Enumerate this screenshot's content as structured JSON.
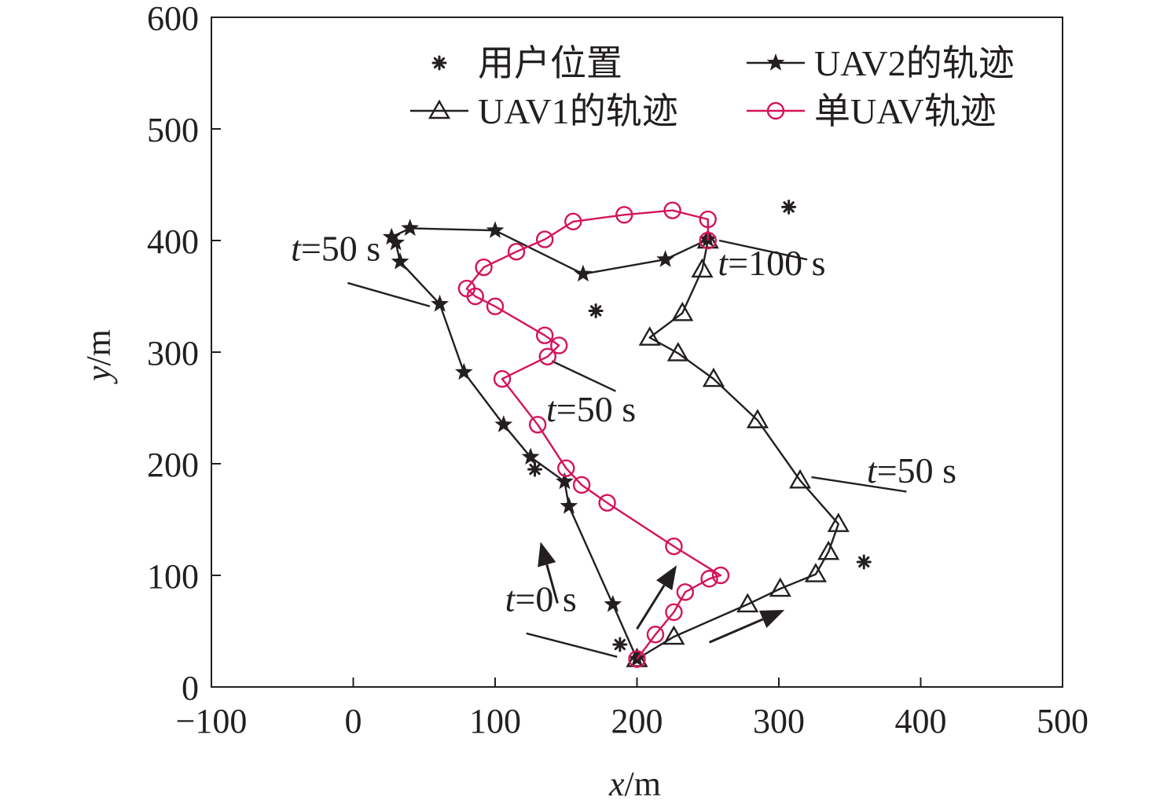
{
  "chart_data": {
    "type": "scatter",
    "xlabel": {
      "var": "x",
      "unit": "/m"
    },
    "ylabel": {
      "var": "y",
      "unit": "/m"
    },
    "xlim": [
      -100,
      500
    ],
    "ylim": [
      0,
      600
    ],
    "xticks": [
      "−100",
      "0",
      "100",
      "200",
      "300",
      "400",
      "500"
    ],
    "yticks": [
      "0",
      "100",
      "200",
      "300",
      "400",
      "500",
      "600"
    ],
    "xtick_values": [
      -100,
      0,
      100,
      200,
      300,
      400,
      500
    ],
    "ytick_values": [
      0,
      100,
      200,
      300,
      400,
      500,
      600
    ],
    "grid": false,
    "legend_position": "top",
    "colors": {
      "ink": "#231f20",
      "single": "#d4145a"
    },
    "series": [
      {
        "key": "users",
        "name": "用户位置",
        "marker": "asterisk",
        "line": false,
        "color": "#231f20",
        "points": [
          [
            188,
            38
          ],
          [
            128,
            195
          ],
          [
            171,
            337
          ],
          [
            307,
            430
          ],
          [
            360,
            112
          ]
        ]
      },
      {
        "key": "uav2",
        "name": "UAV2的轨迹",
        "marker": "star",
        "line": true,
        "color": "#231f20",
        "points": [
          [
            200,
            25
          ],
          [
            183,
            74
          ],
          [
            152,
            162
          ],
          [
            149,
            184
          ],
          [
            125,
            206
          ],
          [
            106,
            235
          ],
          [
            78,
            282
          ],
          [
            61,
            343
          ],
          [
            33,
            381
          ],
          [
            30,
            398
          ],
          [
            27,
            403
          ],
          [
            40,
            411
          ],
          [
            100,
            409
          ],
          [
            162,
            370
          ],
          [
            220,
            383
          ],
          [
            250,
            401
          ]
        ]
      },
      {
        "key": "uav1",
        "name": "UAV1的轨迹",
        "marker": "triangle",
        "line": true,
        "color": "#231f20",
        "points": [
          [
            200,
            25
          ],
          [
            226,
            45
          ],
          [
            278,
            74
          ],
          [
            301,
            88
          ],
          [
            326,
            101
          ],
          [
            335,
            121
          ],
          [
            342,
            146
          ],
          [
            315,
            185
          ],
          [
            285,
            239
          ],
          [
            254,
            276
          ],
          [
            229,
            299
          ],
          [
            209,
            313
          ],
          [
            232,
            335
          ],
          [
            246,
            374
          ],
          [
            250,
            400
          ]
        ]
      },
      {
        "key": "single",
        "name": "单UAV轨迹",
        "marker": "circle",
        "line": true,
        "color": "#d4145a",
        "points": [
          [
            200,
            25
          ],
          [
            213,
            47
          ],
          [
            226,
            67
          ],
          [
            234,
            85
          ],
          [
            251,
            97
          ],
          [
            259,
            100
          ],
          [
            226,
            126
          ],
          [
            179,
            165
          ],
          [
            161,
            181
          ],
          [
            150,
            196
          ],
          [
            130,
            235
          ],
          [
            105,
            276
          ],
          [
            137,
            296
          ],
          [
            145,
            306
          ],
          [
            135,
            315
          ],
          [
            100,
            341
          ],
          [
            86,
            350
          ],
          [
            80,
            357
          ],
          [
            92,
            376
          ],
          [
            115,
            390
          ],
          [
            135,
            401
          ],
          [
            155,
            417
          ],
          [
            191,
            423
          ],
          [
            225,
            427
          ],
          [
            250,
            419
          ],
          [
            250,
            400
          ]
        ]
      }
    ],
    "annotations": [
      {
        "var": "t",
        "rest": "=0 s",
        "text_at": [
          107,
          68
        ],
        "line_from": [
          122,
          48
        ],
        "line_to": [
          186,
          27
        ]
      },
      {
        "var": "t",
        "rest": "=50 s",
        "text_at": [
          -44,
          382
        ],
        "line_from": [
          -4,
          362
        ],
        "line_to": [
          54,
          341
        ]
      },
      {
        "var": "t",
        "rest": "=50 s",
        "text_at": [
          136,
          238
        ],
        "line_from": [
          185,
          265
        ],
        "line_to": [
          140,
          292
        ]
      },
      {
        "var": "t",
        "rest": "=50 s",
        "text_at": [
          362,
          183
        ],
        "line_from": [
          390,
          175
        ],
        "line_to": [
          323,
          188
        ]
      },
      {
        "var": "t",
        "rest": "=100 s",
        "text_at": [
          257,
          369
        ],
        "line_from": [
          320,
          383
        ],
        "line_to": [
          258,
          400
        ]
      }
    ],
    "arrows": [
      {
        "from": [
          144,
          75
        ],
        "to": [
          132,
          130
        ]
      },
      {
        "from": [
          200,
          52
        ],
        "to": [
          228,
          109
        ]
      },
      {
        "from": [
          251,
          40
        ],
        "to": [
          304,
          69
        ]
      }
    ]
  }
}
